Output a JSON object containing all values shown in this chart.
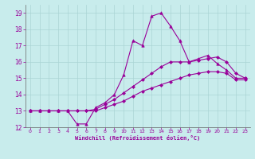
{
  "x": [
    0,
    1,
    2,
    3,
    4,
    5,
    6,
    7,
    8,
    9,
    10,
    11,
    12,
    13,
    14,
    15,
    16,
    17,
    18,
    19,
    20,
    21,
    22,
    23
  ],
  "line1": [
    13,
    13,
    13,
    13,
    13,
    12.2,
    12.2,
    13.2,
    13.5,
    14.0,
    15.2,
    17.3,
    17.0,
    18.8,
    19.0,
    18.2,
    17.3,
    16.0,
    16.2,
    16.4,
    15.9,
    15.5,
    15.0,
    15.0
  ],
  "line2": [
    13,
    13,
    13,
    13,
    13,
    13,
    13,
    13.1,
    13.4,
    13.7,
    14.1,
    14.5,
    14.9,
    15.3,
    15.7,
    16.0,
    16.0,
    16.0,
    16.1,
    16.2,
    16.3,
    16.0,
    15.3,
    15.0
  ],
  "line3": [
    13,
    13,
    13,
    13,
    13,
    13,
    13,
    13.0,
    13.2,
    13.4,
    13.6,
    13.9,
    14.2,
    14.4,
    14.6,
    14.8,
    15.0,
    15.2,
    15.3,
    15.4,
    15.4,
    15.3,
    14.9,
    14.9
  ],
  "line_color": "#990099",
  "bg_color": "#c8ecec",
  "grid_color": "#aad4d4",
  "xlabel": "Windchill (Refroidissement éolien,°C)",
  "xlabel_color": "#990099",
  "ylim": [
    12,
    19.5
  ],
  "xlim": [
    -0.5,
    23.5
  ],
  "yticks": [
    12,
    13,
    14,
    15,
    16,
    17,
    18,
    19
  ],
  "xticks": [
    0,
    1,
    2,
    3,
    4,
    5,
    6,
    7,
    8,
    9,
    10,
    11,
    12,
    13,
    14,
    15,
    16,
    17,
    18,
    19,
    20,
    21,
    22,
    23
  ]
}
